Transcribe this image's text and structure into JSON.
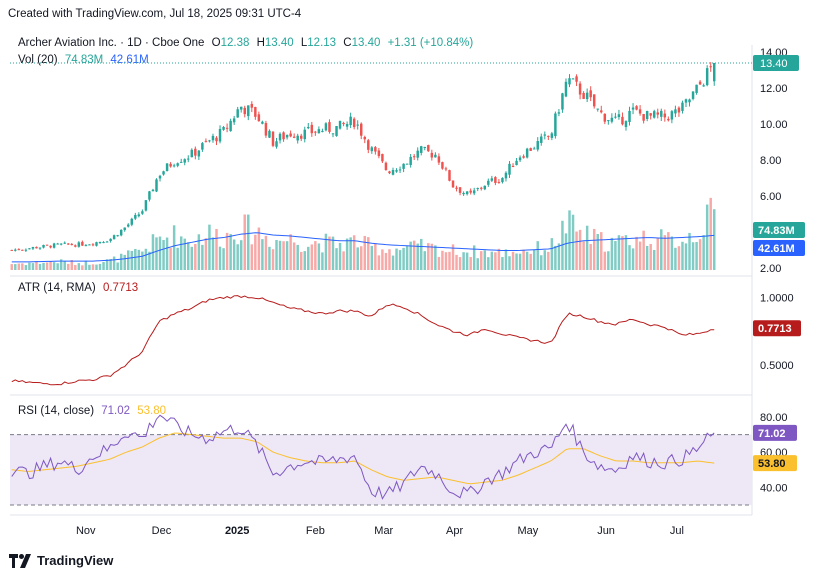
{
  "header": {
    "created_text": "Created with TradingView.com, Jul 18, 2025 09:31 UTC-4"
  },
  "footer": {
    "brand": "TradingView"
  },
  "colors": {
    "up": "#26a69a",
    "down": "#ef5350",
    "vol_ma": "#2962ff",
    "atr": "#b71c1c",
    "rsi": "#7e57c2",
    "rsi_ma": "#fbc02d",
    "grid": "#d1d4dc",
    "text": "#131722"
  },
  "chart_data": [
    {
      "type": "candlestick",
      "legend": {
        "symbol": "Archer Aviation Inc. · 1D · Cboe One",
        "o_label": "O",
        "o": "12.38",
        "h_label": "H",
        "h": "13.40",
        "l_label": "L",
        "l": "12.13",
        "c_label": "C",
        "c": "13.40",
        "change": "+1.31 (+10.84%)"
      },
      "y_ticks": [
        "14.00",
        "12.00",
        "10.00",
        "8.00",
        "6.00",
        "2.00"
      ],
      "ylim": [
        2,
        14.4
      ],
      "last_price_label": "13.40",
      "x_ticks": [
        "Nov",
        "Dec",
        "2025",
        "Feb",
        "Mar",
        "Apr",
        "May",
        "Jun",
        "Jul"
      ],
      "x_tick_dates": [
        "2024-11-01",
        "2024-12-02",
        "2025-01-02",
        "2025-02-03",
        "2025-03-03",
        "2025-04-01",
        "2025-05-01",
        "2025-06-02",
        "2025-07-01"
      ],
      "date_range": [
        "2024-10-01",
        "2025-07-17"
      ],
      "closes_weekly": [
        3.0,
        3.1,
        3.2,
        3.3,
        3.3,
        3.4,
        3.6,
        4.3,
        5.2,
        7.2,
        8.0,
        8.3,
        9.0,
        9.6,
        11.0,
        10.5,
        9.0,
        9.5,
        9.5,
        9.7,
        9.8,
        10.2,
        8.6,
        7.4,
        7.8,
        8.5,
        8.3,
        6.6,
        6.0,
        6.7,
        7.0,
        8.2,
        8.8,
        9.4,
        12.5,
        11.7,
        10.6,
        10.1,
        10.7,
        10.4,
        10.4,
        10.8,
        12.0,
        13.4
      ]
    },
    {
      "type": "bar",
      "name": "Vol (20)",
      "value_label": "74.83M",
      "ma_label": "42.61M",
      "volumes_weekly_millions": [
        8,
        9,
        10,
        11,
        9,
        10,
        12,
        18,
        25,
        40,
        45,
        38,
        48,
        42,
        55,
        50,
        38,
        40,
        35,
        36,
        33,
        38,
        30,
        27,
        28,
        30,
        27,
        25,
        24,
        23,
        22,
        25,
        27,
        30,
        60,
        45,
        38,
        35,
        40,
        42,
        38,
        40,
        50,
        74.83
      ],
      "ma_weekly_millions": [
        10,
        10,
        10.5,
        11,
        11,
        11,
        12,
        14,
        17,
        24,
        30,
        34,
        38,
        40,
        44,
        46,
        43,
        42,
        40,
        38,
        36,
        36,
        33,
        31,
        30,
        29,
        28,
        27,
        26,
        25,
        24,
        24,
        25,
        26,
        33,
        36,
        37,
        38,
        39,
        40,
        39,
        40,
        41,
        42.61
      ]
    },
    {
      "type": "line",
      "name": "ATR (14, RMA)",
      "value_label": "0.7713",
      "y_ticks": [
        "1.0000",
        "0.5000"
      ],
      "ylim": [
        0.35,
        1.07
      ],
      "values_weekly": [
        0.38,
        0.37,
        0.36,
        0.36,
        0.38,
        0.39,
        0.42,
        0.5,
        0.6,
        0.82,
        0.88,
        0.92,
        0.98,
        1.0,
        1.01,
        1.0,
        0.96,
        0.92,
        0.9,
        0.88,
        0.9,
        0.9,
        0.86,
        0.95,
        0.93,
        0.87,
        0.8,
        0.75,
        0.72,
        0.77,
        0.73,
        0.7,
        0.68,
        0.66,
        0.88,
        0.86,
        0.82,
        0.8,
        0.84,
        0.8,
        0.78,
        0.72,
        0.73,
        0.77
      ]
    },
    {
      "type": "line",
      "name": "RSI (14, close)",
      "value_label": "71.02",
      "ma_label": "53.80",
      "y_ticks": [
        "80.00",
        "60.00",
        "40.00"
      ],
      "ylim": [
        26,
        84
      ],
      "bands": [
        70,
        30
      ],
      "values_weekly": [
        50,
        48,
        52,
        55,
        50,
        58,
        62,
        72,
        68,
        82,
        75,
        70,
        68,
        72,
        74,
        64,
        48,
        52,
        55,
        54,
        56,
        58,
        38,
        36,
        42,
        52,
        48,
        38,
        36,
        44,
        48,
        55,
        60,
        62,
        78,
        60,
        52,
        50,
        58,
        55,
        54,
        56,
        62,
        71.02
      ],
      "ma_weekly": [
        50,
        49,
        50,
        51,
        52,
        54,
        56,
        60,
        63,
        68,
        71,
        70,
        69,
        68,
        68,
        66,
        60,
        57,
        55,
        54,
        54,
        55,
        50,
        46,
        44,
        45,
        46,
        44,
        42,
        43,
        44,
        47,
        51,
        55,
        62,
        62,
        58,
        55,
        55,
        54,
        54,
        54,
        55,
        53.8
      ]
    }
  ]
}
